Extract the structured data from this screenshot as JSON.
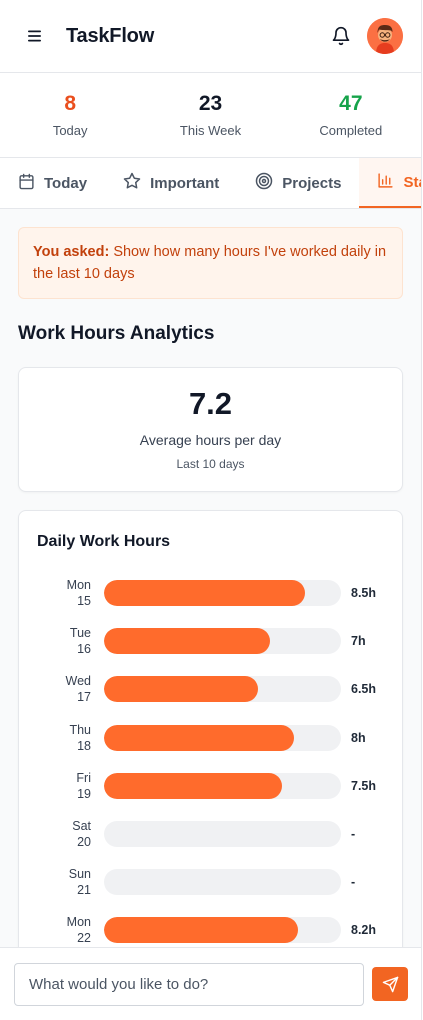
{
  "header": {
    "title": "TaskFlow",
    "menu_icon": "hamburger-menu-icon",
    "notification_icon": "bell-icon",
    "avatar_icon": "user-avatar"
  },
  "stats": [
    {
      "value": "8",
      "label": "Today",
      "color": "#ea4f1e"
    },
    {
      "value": "23",
      "label": "This Week",
      "color": "#111827"
    },
    {
      "value": "47",
      "label": "Completed",
      "color": "#16a34a"
    }
  ],
  "tabs": [
    {
      "label": "Today",
      "icon": "calendar-icon",
      "active": false
    },
    {
      "label": "Important",
      "icon": "star-icon",
      "active": false
    },
    {
      "label": "Projects",
      "icon": "target-icon",
      "active": false
    },
    {
      "label": "Stats",
      "icon": "bar-chart-icon",
      "active": true
    }
  ],
  "query": {
    "prefix": "You asked:",
    "text": "Show how many hours I've worked daily in the last 10 days"
  },
  "analytics": {
    "title": "Work Hours Analytics",
    "average_value": "7.2",
    "average_label": "Average hours per day",
    "average_sub": "Last 10 days"
  },
  "chart_data": {
    "type": "bar",
    "orientation": "horizontal",
    "title": "Daily Work Hours",
    "xlim": [
      0,
      10
    ],
    "categories": [
      {
        "day": "Mon",
        "date": "15"
      },
      {
        "day": "Tue",
        "date": "16"
      },
      {
        "day": "Wed",
        "date": "17"
      },
      {
        "day": "Thu",
        "date": "18"
      },
      {
        "day": "Fri",
        "date": "19"
      },
      {
        "day": "Sat",
        "date": "20"
      },
      {
        "day": "Sun",
        "date": "21"
      },
      {
        "day": "Mon",
        "date": "22"
      }
    ],
    "values": [
      8.5,
      7,
      6.5,
      8,
      7.5,
      null,
      null,
      8.2
    ],
    "value_labels": [
      "8.5h",
      "7h",
      "6.5h",
      "8h",
      "7.5h",
      "-",
      "-",
      "8.2h"
    ],
    "bar_color": "#ff6b2c",
    "track_color": "#f0f1f3"
  },
  "input": {
    "placeholder": "What would you like to do?",
    "value": "",
    "send_icon": "send-icon"
  },
  "colors": {
    "accent": "#f26522"
  }
}
